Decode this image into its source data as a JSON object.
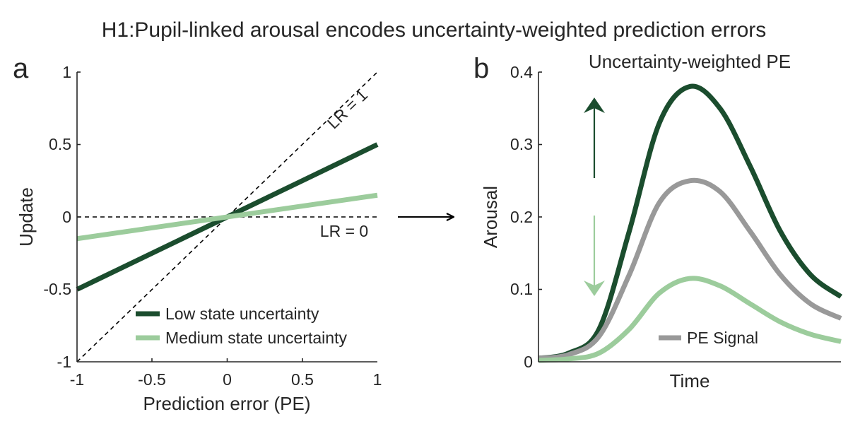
{
  "figure": {
    "title": "H1:Pupil-linked arousal encodes uncertainty-weighted prediction errors"
  },
  "chart_data": [
    {
      "panel": "a",
      "type": "line",
      "xlabel": "Prediction error (PE)",
      "ylabel": "Update",
      "xlim": [
        -1,
        1
      ],
      "ylim": [
        -1,
        1
      ],
      "xticks": [
        "-1",
        "-0.5",
        "0",
        "0.5",
        "1"
      ],
      "yticks": [
        "-1",
        "-0.5",
        "0",
        "0.5",
        "1"
      ],
      "grid": false,
      "legend_position": "bottom-right",
      "series": [
        {
          "name": "Low state uncertainty",
          "color": "#1b4d2e",
          "x": [
            -1,
            1
          ],
          "y": [
            -0.5,
            0.5
          ]
        },
        {
          "name": "Medium state uncertainty",
          "color": "#9ccc9c",
          "x": [
            -1,
            1
          ],
          "y": [
            -0.15,
            0.15
          ]
        }
      ],
      "reference_lines": [
        {
          "label": "LR = 1",
          "style": "dashed",
          "x": [
            -1,
            1
          ],
          "y": [
            -1,
            1
          ]
        },
        {
          "label": "LR = 0",
          "style": "dashed",
          "x": [
            -1,
            1
          ],
          "y": [
            0,
            0
          ]
        }
      ]
    },
    {
      "panel": "b",
      "type": "line",
      "title": "Uncertainty-weighted PE",
      "xlabel": "Time",
      "ylabel": "Arousal",
      "ylim": [
        0,
        0.4
      ],
      "yticks": [
        "0",
        "0.1",
        "0.2",
        "0.3",
        "0.4"
      ],
      "grid": false,
      "legend_position": "bottom-right",
      "time_points": [
        0,
        0.1,
        0.2,
        0.3,
        0.4,
        0.5,
        0.6,
        0.7,
        0.8,
        0.9,
        1.0
      ],
      "series": [
        {
          "name": "",
          "color": "#1b4d2e",
          "y": [
            0.005,
            0.012,
            0.045,
            0.18,
            0.33,
            0.38,
            0.35,
            0.27,
            0.18,
            0.12,
            0.09
          ]
        },
        {
          "name": "PE Signal",
          "color": "#999999",
          "y": [
            0.005,
            0.01,
            0.035,
            0.12,
            0.22,
            0.25,
            0.235,
            0.18,
            0.12,
            0.08,
            0.06
          ]
        },
        {
          "name": "",
          "color": "#9ccc9c",
          "y": [
            0.002,
            0.004,
            0.012,
            0.045,
            0.095,
            0.115,
            0.105,
            0.08,
            0.055,
            0.038,
            0.028
          ]
        }
      ],
      "annotations": [
        {
          "type": "arrow-up",
          "color": "#1b4d2e"
        },
        {
          "type": "arrow-down",
          "color": "#9ccc9c"
        }
      ]
    }
  ]
}
